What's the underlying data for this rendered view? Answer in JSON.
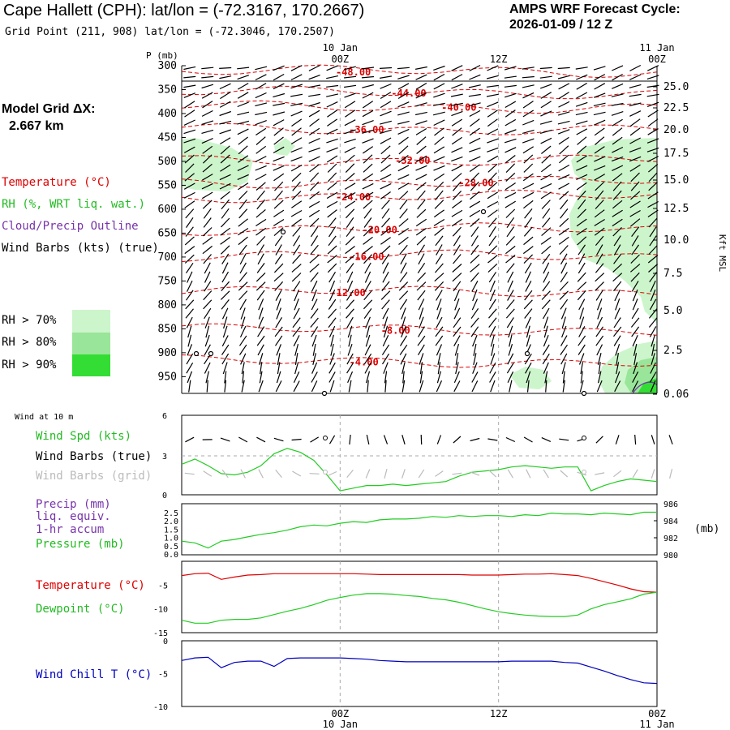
{
  "header": {
    "title": "Cape Hallett (CPH):  lat/lon = (-72.3167, 170.2667)",
    "grid_point": "Grid Point (211, 908) lat/lon = (-72.3046, 170.2507)",
    "cycle_title": "AMPS WRF Forecast Cycle:",
    "cycle_value": "2026-01-09 / 12  Z"
  },
  "sidebar": {
    "model_grid_label": "Model Grid ΔX:",
    "model_grid_value": "2.667 km",
    "temperature_label": "Temperature (°C)",
    "rh_label": "RH (%, WRT liq. wat.)",
    "cloud_label": "Cloud/Precip Outline",
    "wind_label": "Wind Barbs (kts) (true)",
    "rh_legend": [
      {
        "label": "RH > 70%",
        "color": "#ccf5cc"
      },
      {
        "label": "RH > 80%",
        "color": "#99e599"
      },
      {
        "label": "RH > 90%",
        "color": "#33dd33"
      }
    ]
  },
  "colors": {
    "temperature": "#dd0000",
    "green": "#22cc22",
    "purple": "#7733aa",
    "blue": "#0000bb",
    "grid": "#aaaaaa",
    "grey_barb": "#bbbbbb"
  },
  "chart_data": [
    {
      "id": "cross_section",
      "type": "contour",
      "title": "",
      "xlabel": "",
      "ylabel": "P (mb)",
      "y2label": "Kft MSL",
      "time_ticks_top": [
        {
          "day": "10 Jan",
          "hour": "00Z",
          "h": 12
        },
        {
          "day": "",
          "hour": "12Z",
          "h": 24
        },
        {
          "day": "11 Jan",
          "hour": "00Z",
          "h": 36
        }
      ],
      "pressure_ticks": [
        "300",
        "350",
        "400",
        "450",
        "500",
        "550",
        "600",
        "650",
        "700",
        "750",
        "800",
        "850",
        "900",
        "950"
      ],
      "height_ticks_kft": [
        "25.0",
        "22.5",
        "20.0",
        "17.5",
        "15.0",
        "12.5",
        "10.0",
        "7.5",
        "5.0",
        "2.5",
        "0.06"
      ],
      "isotherms": [
        {
          "label": "-48.00",
          "value": -48,
          "y_mb": 312,
          "label_h": 13.0
        },
        {
          "label": "-44.00",
          "value": -44,
          "y_mb": 356,
          "label_h": 17.2
        },
        {
          "label": "-40.00",
          "value": -40,
          "y_mb": 386,
          "label_h": 21.0
        },
        {
          "label": "-36.00",
          "value": -36,
          "y_mb": 432,
          "label_h": 14.0
        },
        {
          "label": "-32.00",
          "value": -32,
          "y_mb": 497,
          "label_h": 17.5
        },
        {
          "label": "-28.00",
          "value": -28,
          "y_mb": 543,
          "label_h": 22.3
        },
        {
          "label": "-24.00",
          "value": -24,
          "y_mb": 573,
          "label_h": 13.0
        },
        {
          "label": "-20.00",
          "value": -20,
          "y_mb": 642,
          "label_h": 15.0
        },
        {
          "label": "-16.00",
          "value": -16,
          "y_mb": 698,
          "label_h": 14.0
        },
        {
          "label": "-12.00",
          "value": -12,
          "y_mb": 773,
          "label_h": 12.6
        },
        {
          "label": "-8.00",
          "value": -8,
          "y_mb": 852,
          "label_h": 16.2
        },
        {
          "label": "-4.00",
          "value": -4,
          "y_mb": 918,
          "label_h": 13.8
        }
      ]
    },
    {
      "id": "wind10m",
      "type": "line",
      "title": "Wind at 10 m",
      "series_labels": [
        "Wind Spd (kts)",
        "Wind Barbs (true)",
        "Wind Barbs (grid)"
      ],
      "ylim": [
        0,
        6
      ],
      "yticks": [
        "6",
        "3",
        "0"
      ],
      "x_hours": [
        0,
        1,
        2,
        3,
        4,
        5,
        6,
        7,
        8,
        9,
        10,
        11,
        12,
        13,
        14,
        15,
        16,
        17,
        18,
        19,
        20,
        21,
        22,
        23,
        24,
        25,
        26,
        27,
        28,
        29,
        30,
        31,
        32,
        33,
        34,
        35,
        36
      ],
      "wind_speed": [
        2.3,
        2.7,
        2.2,
        1.6,
        1.5,
        1.7,
        2.2,
        3.1,
        3.5,
        3.2,
        2.6,
        1.5,
        0.3,
        0.5,
        0.7,
        0.7,
        0.8,
        0.7,
        0.8,
        0.9,
        1.0,
        1.4,
        1.7,
        1.8,
        1.9,
        2.1,
        2.2,
        2.1,
        2.0,
        2.1,
        2.1,
        0.3,
        0.7,
        1.0,
        1.2,
        1.1,
        1.0
      ]
    },
    {
      "id": "precip_pressure",
      "type": "line",
      "series_labels": [
        "Precip (mm)",
        "liq. equiv.",
        "1-hr accum",
        "Pressure (mb)"
      ],
      "left_ticks": [
        "2.5",
        "2.0",
        "1.5",
        "1.0",
        "0.5",
        "0.0"
      ],
      "right_ticks": [
        "986",
        "984",
        "982",
        "980"
      ],
      "right_unit": "(mb)",
      "ylim_right": [
        980,
        986
      ],
      "pressure": [
        981.6,
        981.4,
        980.8,
        981.6,
        981.8,
        982.1,
        982.4,
        982.6,
        982.9,
        983.3,
        983.5,
        983.4,
        983.7,
        983.9,
        983.8,
        984.1,
        984.2,
        984.2,
        984.3,
        984.5,
        984.4,
        984.6,
        984.5,
        984.6,
        984.6,
        984.5,
        984.7,
        984.6,
        984.9,
        984.8,
        984.8,
        984.7,
        984.9,
        984.8,
        984.7,
        985.0,
        985.0
      ]
    },
    {
      "id": "temp_dew",
      "type": "line",
      "series_labels": [
        "Temperature (°C)",
        "Dewpoint (°C)"
      ],
      "yticks": [
        "-5",
        "-10",
        "-15"
      ],
      "ylim": [
        -15,
        0
      ],
      "temperature": [
        -3.0,
        -2.6,
        -2.5,
        -3.8,
        -3.3,
        -2.9,
        -2.8,
        -2.6,
        -2.6,
        -2.6,
        -2.6,
        -2.6,
        -2.6,
        -2.6,
        -2.7,
        -2.8,
        -2.8,
        -2.8,
        -2.8,
        -2.8,
        -2.8,
        -2.8,
        -2.9,
        -2.9,
        -2.9,
        -2.8,
        -2.7,
        -2.7,
        -2.6,
        -2.8,
        -3.0,
        -3.6,
        -4.3,
        -5.0,
        -5.8,
        -6.4,
        -6.5
      ],
      "dewpoint": [
        -12.4,
        -13.0,
        -13.0,
        -12.4,
        -12.2,
        -12.2,
        -11.9,
        -11.2,
        -10.5,
        -9.9,
        -9.1,
        -8.2,
        -7.6,
        -7.1,
        -6.8,
        -6.8,
        -6.9,
        -7.2,
        -7.4,
        -7.8,
        -8.1,
        -8.6,
        -9.3,
        -10.0,
        -10.6,
        -11.0,
        -11.3,
        -11.5,
        -11.6,
        -11.6,
        -11.3,
        -10.0,
        -9.1,
        -8.5,
        -7.9,
        -6.9,
        -6.5
      ]
    },
    {
      "id": "windchill",
      "type": "line",
      "series_labels": [
        "Wind Chill T (°C)"
      ],
      "yticks": [
        "0",
        "-5",
        "-10"
      ],
      "ylim": [
        -10,
        0
      ],
      "windchill": [
        -3.0,
        -2.6,
        -2.5,
        -4.1,
        -3.3,
        -3.1,
        -3.1,
        -3.9,
        -2.7,
        -2.6,
        -2.6,
        -2.6,
        -2.6,
        -2.7,
        -2.8,
        -3.0,
        -3.1,
        -3.2,
        -3.2,
        -3.2,
        -3.2,
        -3.2,
        -3.2,
        -3.2,
        -3.2,
        -3.1,
        -3.1,
        -3.1,
        -3.1,
        -3.3,
        -3.4,
        -4.0,
        -4.6,
        -5.3,
        -5.9,
        -6.4,
        -6.5
      ]
    },
    {
      "id": "bottom_axis",
      "type": "axis",
      "time_ticks_bottom": [
        {
          "hour": "00Z",
          "day": "10 Jan",
          "h": 12
        },
        {
          "hour": "12Z",
          "day": "",
          "h": 24
        },
        {
          "hour": "00Z",
          "day": "11 Jan",
          "h": 36
        }
      ]
    }
  ]
}
